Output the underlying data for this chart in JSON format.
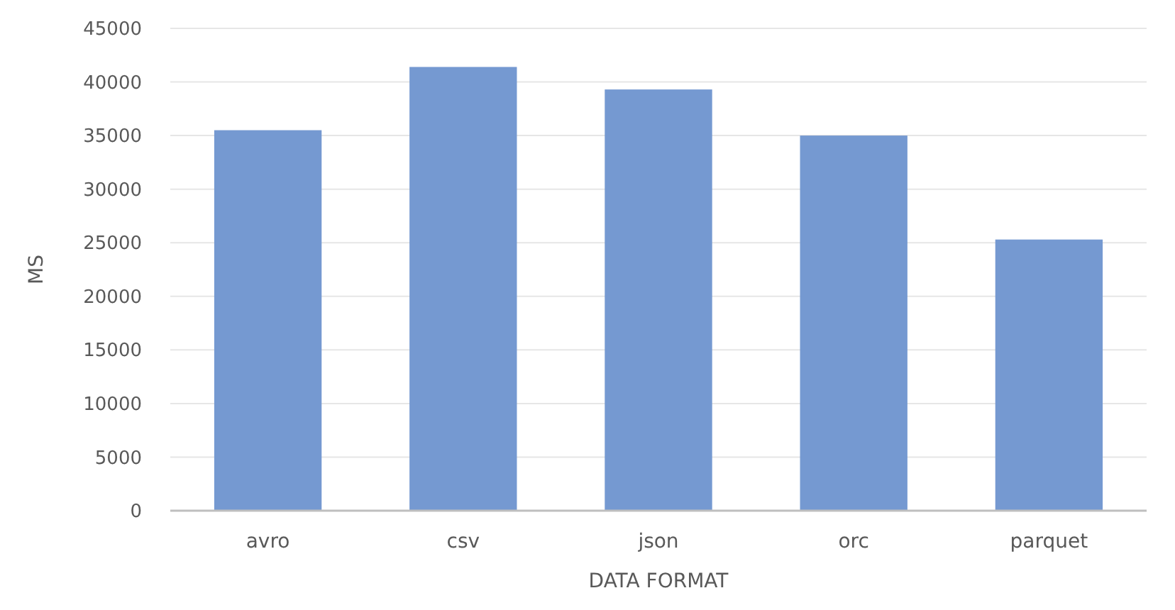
{
  "chart_data": {
    "type": "bar",
    "xlabel": "DATA FORMAT",
    "ylabel": "MS",
    "categories": [
      "avro",
      "csv",
      "json",
      "orc",
      "parquet"
    ],
    "values": [
      35500,
      41400,
      39300,
      35000,
      25300
    ],
    "color": "#7599d1",
    "ylim": [
      0,
      45000
    ],
    "yticks": [
      0,
      5000,
      10000,
      15000,
      20000,
      25000,
      30000,
      35000,
      40000,
      45000
    ],
    "grid": "y"
  }
}
